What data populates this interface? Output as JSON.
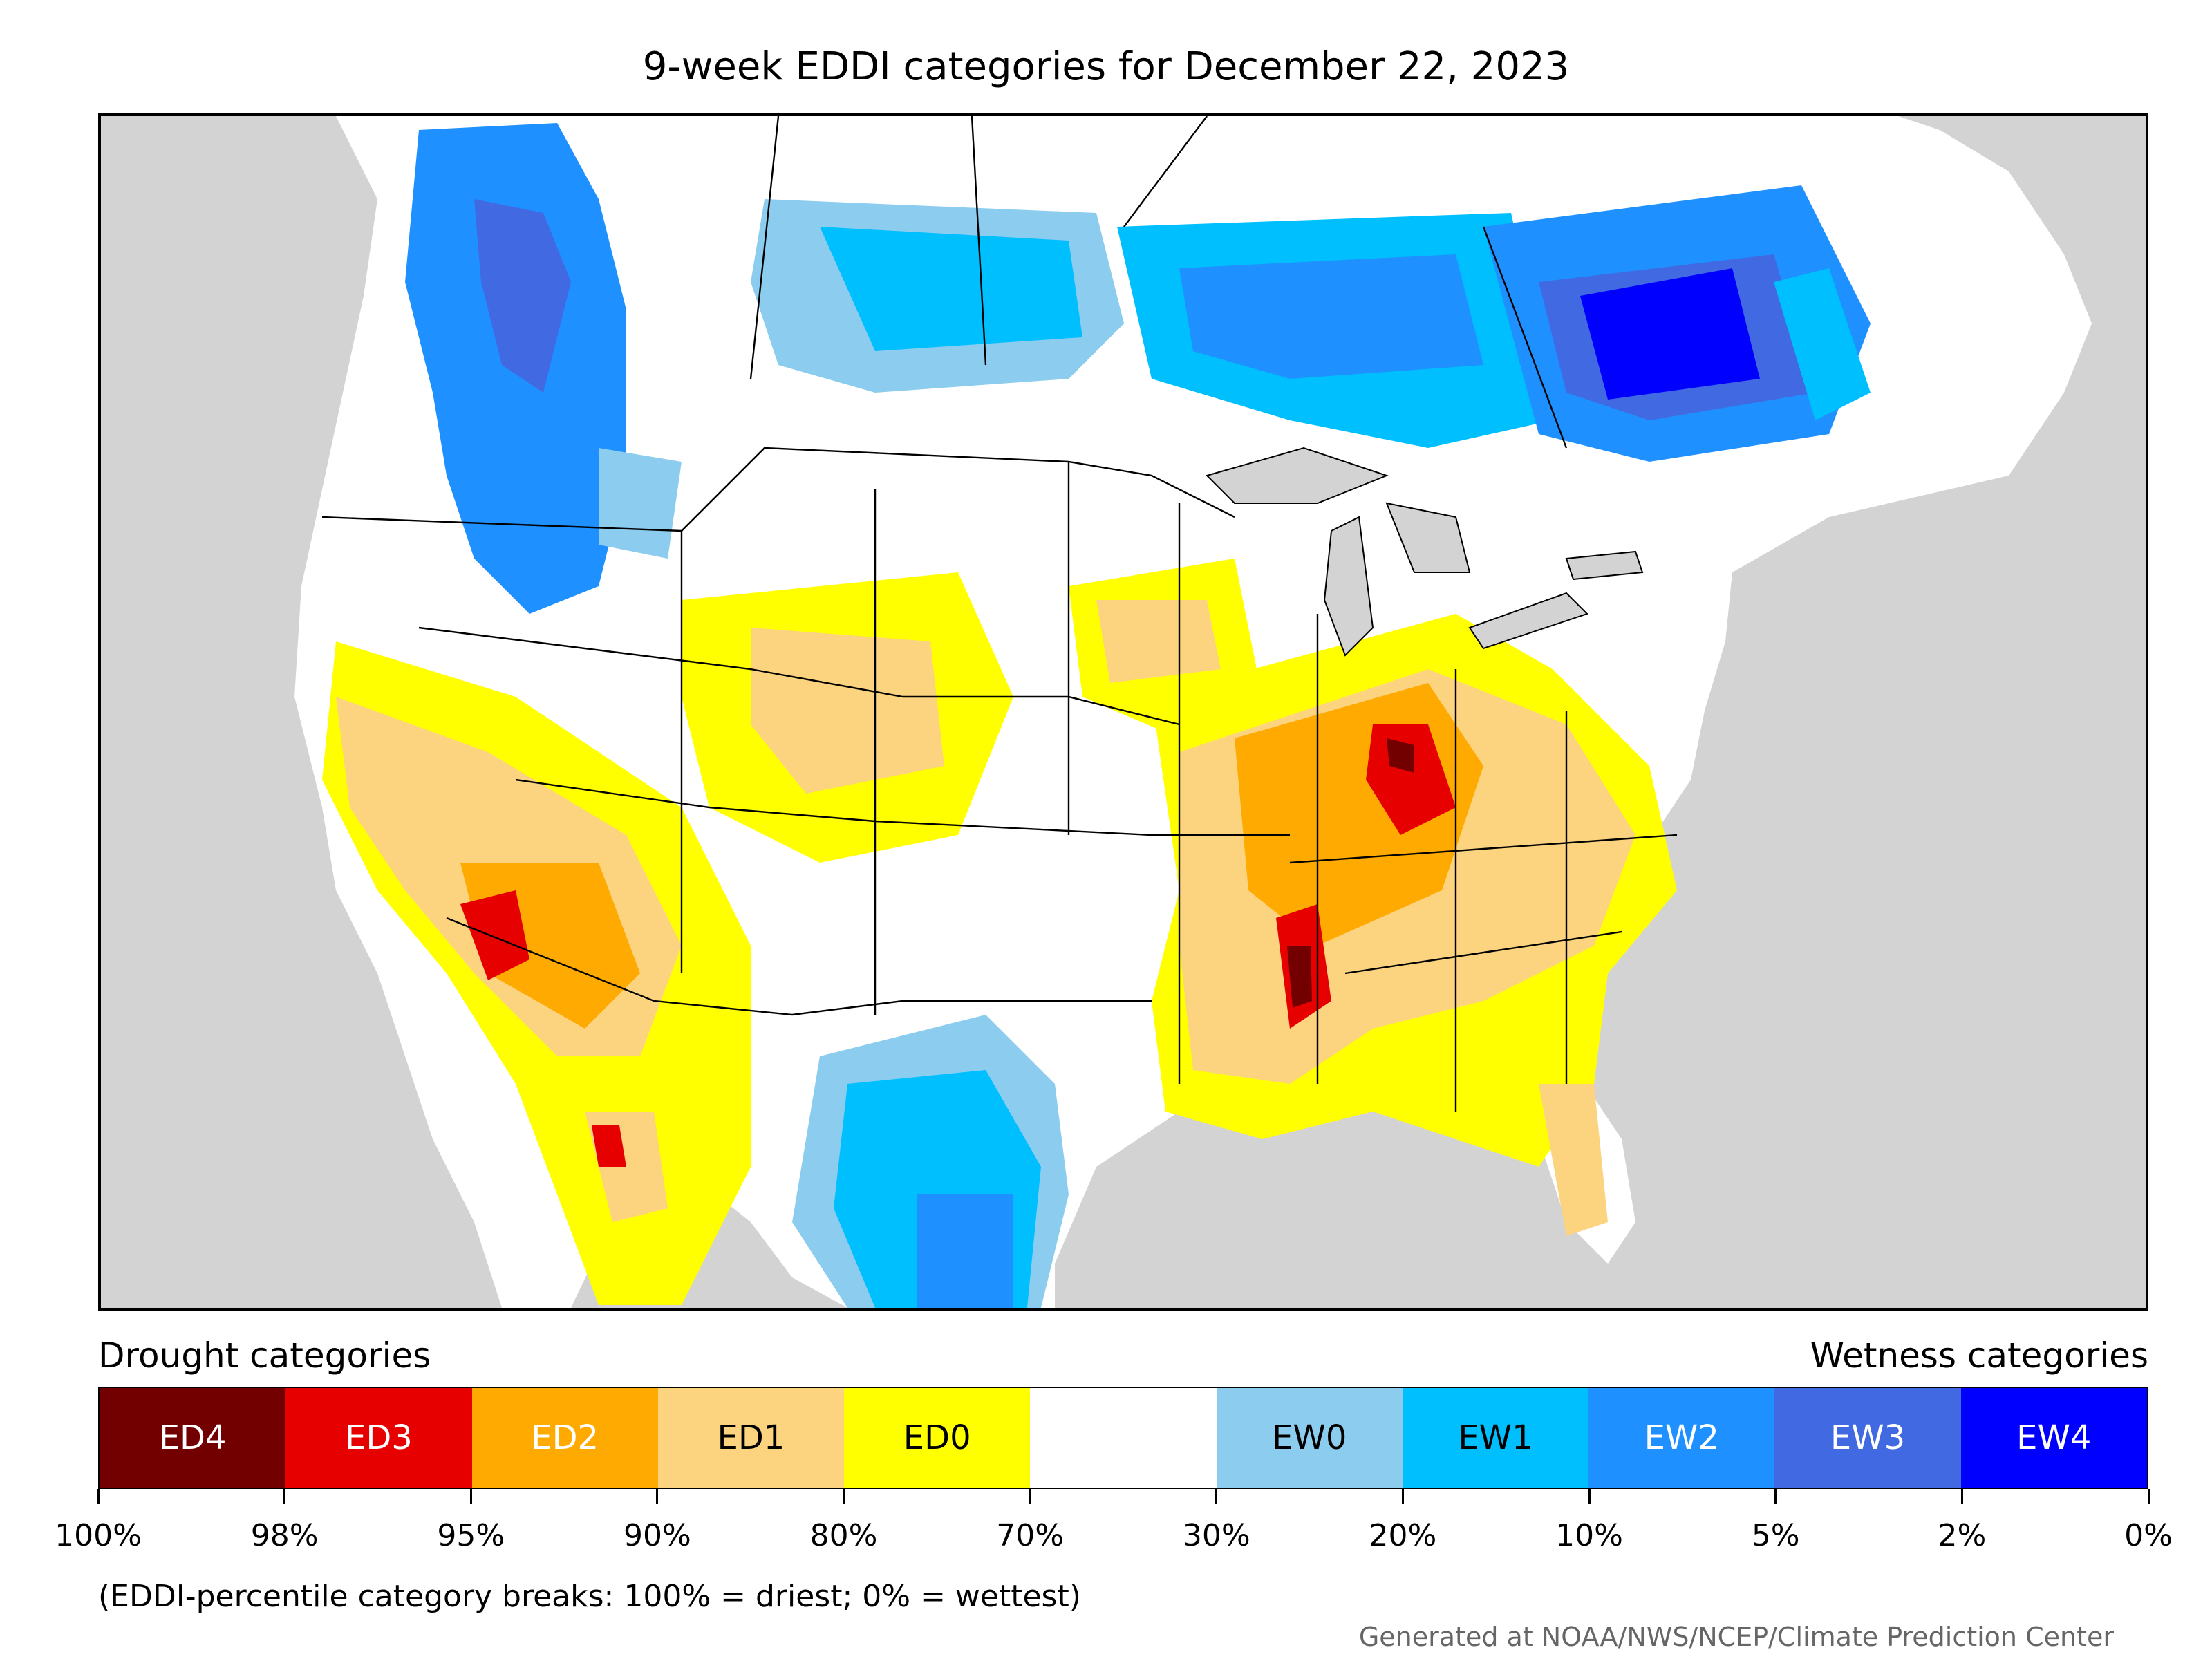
{
  "title": "9-week EDDI categories for December 22, 2023",
  "legend": {
    "drought_label": "Drought categories",
    "wetness_label": "Wetness categories",
    "categories": [
      {
        "label": "ED4",
        "color": "#730000",
        "text_color": "#ffffff"
      },
      {
        "label": "ED3",
        "color": "#e60000",
        "text_color": "#ffffff"
      },
      {
        "label": "ED2",
        "color": "#ffaa00",
        "text_color": "#ffffff"
      },
      {
        "label": "ED1",
        "color": "#fcd37f",
        "text_color": "#000000"
      },
      {
        "label": "ED0",
        "color": "#ffff00",
        "text_color": "#000000"
      },
      {
        "label": "",
        "color": "#ffffff",
        "text_color": "#000000"
      },
      {
        "label": "EW0",
        "color": "#8ccdef",
        "text_color": "#000000"
      },
      {
        "label": "EW1",
        "color": "#00bfff",
        "text_color": "#000000"
      },
      {
        "label": "EW2",
        "color": "#1e90ff",
        "text_color": "#ffffff"
      },
      {
        "label": "EW3",
        "color": "#4169e1",
        "text_color": "#ffffff"
      },
      {
        "label": "EW4",
        "color": "#0000ff",
        "text_color": "#ffffff"
      }
    ],
    "tick_labels": [
      "100%",
      "98%",
      "95%",
      "90%",
      "80%",
      "70%",
      "30%",
      "20%",
      "10%",
      "5%",
      "2%",
      "0%"
    ]
  },
  "footnote": "(EDDI-percentile category breaks: 100% = driest; 0% = wettest)",
  "credit": "Generated at NOAA/NWS/NCEP/Climate Prediction Center",
  "map": {
    "background_color": "#d3d3d3",
    "land_color": "#ffffff"
  }
}
